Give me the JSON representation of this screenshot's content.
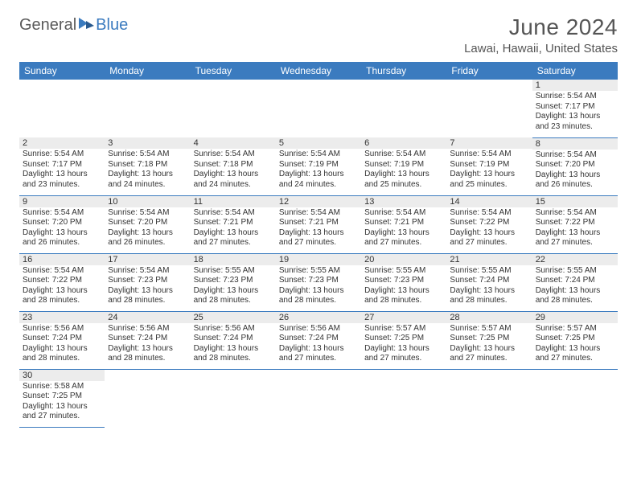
{
  "logo": {
    "text1": "General",
    "text2": "Blue"
  },
  "title": "June 2024",
  "location": "Lawai, Hawaii, United States",
  "colors": {
    "header_bg": "#3b7bbf",
    "header_fg": "#ffffff",
    "gray_bg": "#ececec",
    "border": "#3b7bbf",
    "text": "#333333",
    "title_color": "#555555"
  },
  "columns": [
    "Sunday",
    "Monday",
    "Tuesday",
    "Wednesday",
    "Thursday",
    "Friday",
    "Saturday"
  ],
  "weeks": [
    [
      null,
      null,
      null,
      null,
      null,
      null,
      {
        "n": "1",
        "sr": "5:54 AM",
        "ss": "7:17 PM",
        "dl1": "13 hours",
        "dl2": "and 23 minutes."
      }
    ],
    [
      {
        "n": "2",
        "sr": "5:54 AM",
        "ss": "7:17 PM",
        "dl1": "13 hours",
        "dl2": "and 23 minutes."
      },
      {
        "n": "3",
        "sr": "5:54 AM",
        "ss": "7:18 PM",
        "dl1": "13 hours",
        "dl2": "and 24 minutes."
      },
      {
        "n": "4",
        "sr": "5:54 AM",
        "ss": "7:18 PM",
        "dl1": "13 hours",
        "dl2": "and 24 minutes."
      },
      {
        "n": "5",
        "sr": "5:54 AM",
        "ss": "7:19 PM",
        "dl1": "13 hours",
        "dl2": "and 24 minutes."
      },
      {
        "n": "6",
        "sr": "5:54 AM",
        "ss": "7:19 PM",
        "dl1": "13 hours",
        "dl2": "and 25 minutes."
      },
      {
        "n": "7",
        "sr": "5:54 AM",
        "ss": "7:19 PM",
        "dl1": "13 hours",
        "dl2": "and 25 minutes."
      },
      {
        "n": "8",
        "sr": "5:54 AM",
        "ss": "7:20 PM",
        "dl1": "13 hours",
        "dl2": "and 26 minutes."
      }
    ],
    [
      {
        "n": "9",
        "sr": "5:54 AM",
        "ss": "7:20 PM",
        "dl1": "13 hours",
        "dl2": "and 26 minutes."
      },
      {
        "n": "10",
        "sr": "5:54 AM",
        "ss": "7:20 PM",
        "dl1": "13 hours",
        "dl2": "and 26 minutes."
      },
      {
        "n": "11",
        "sr": "5:54 AM",
        "ss": "7:21 PM",
        "dl1": "13 hours",
        "dl2": "and 27 minutes."
      },
      {
        "n": "12",
        "sr": "5:54 AM",
        "ss": "7:21 PM",
        "dl1": "13 hours",
        "dl2": "and 27 minutes."
      },
      {
        "n": "13",
        "sr": "5:54 AM",
        "ss": "7:21 PM",
        "dl1": "13 hours",
        "dl2": "and 27 minutes."
      },
      {
        "n": "14",
        "sr": "5:54 AM",
        "ss": "7:22 PM",
        "dl1": "13 hours",
        "dl2": "and 27 minutes."
      },
      {
        "n": "15",
        "sr": "5:54 AM",
        "ss": "7:22 PM",
        "dl1": "13 hours",
        "dl2": "and 27 minutes."
      }
    ],
    [
      {
        "n": "16",
        "sr": "5:54 AM",
        "ss": "7:22 PM",
        "dl1": "13 hours",
        "dl2": "and 28 minutes."
      },
      {
        "n": "17",
        "sr": "5:54 AM",
        "ss": "7:23 PM",
        "dl1": "13 hours",
        "dl2": "and 28 minutes."
      },
      {
        "n": "18",
        "sr": "5:55 AM",
        "ss": "7:23 PM",
        "dl1": "13 hours",
        "dl2": "and 28 minutes."
      },
      {
        "n": "19",
        "sr": "5:55 AM",
        "ss": "7:23 PM",
        "dl1": "13 hours",
        "dl2": "and 28 minutes."
      },
      {
        "n": "20",
        "sr": "5:55 AM",
        "ss": "7:23 PM",
        "dl1": "13 hours",
        "dl2": "and 28 minutes."
      },
      {
        "n": "21",
        "sr": "5:55 AM",
        "ss": "7:24 PM",
        "dl1": "13 hours",
        "dl2": "and 28 minutes."
      },
      {
        "n": "22",
        "sr": "5:55 AM",
        "ss": "7:24 PM",
        "dl1": "13 hours",
        "dl2": "and 28 minutes."
      }
    ],
    [
      {
        "n": "23",
        "sr": "5:56 AM",
        "ss": "7:24 PM",
        "dl1": "13 hours",
        "dl2": "and 28 minutes."
      },
      {
        "n": "24",
        "sr": "5:56 AM",
        "ss": "7:24 PM",
        "dl1": "13 hours",
        "dl2": "and 28 minutes."
      },
      {
        "n": "25",
        "sr": "5:56 AM",
        "ss": "7:24 PM",
        "dl1": "13 hours",
        "dl2": "and 28 minutes."
      },
      {
        "n": "26",
        "sr": "5:56 AM",
        "ss": "7:24 PM",
        "dl1": "13 hours",
        "dl2": "and 27 minutes."
      },
      {
        "n": "27",
        "sr": "5:57 AM",
        "ss": "7:25 PM",
        "dl1": "13 hours",
        "dl2": "and 27 minutes."
      },
      {
        "n": "28",
        "sr": "5:57 AM",
        "ss": "7:25 PM",
        "dl1": "13 hours",
        "dl2": "and 27 minutes."
      },
      {
        "n": "29",
        "sr": "5:57 AM",
        "ss": "7:25 PM",
        "dl1": "13 hours",
        "dl2": "and 27 minutes."
      }
    ],
    [
      {
        "n": "30",
        "sr": "5:58 AM",
        "ss": "7:25 PM",
        "dl1": "13 hours",
        "dl2": "and 27 minutes."
      },
      null,
      null,
      null,
      null,
      null,
      null
    ]
  ],
  "labels": {
    "sunrise": "Sunrise: ",
    "sunset": "Sunset: ",
    "daylight": "Daylight: "
  }
}
